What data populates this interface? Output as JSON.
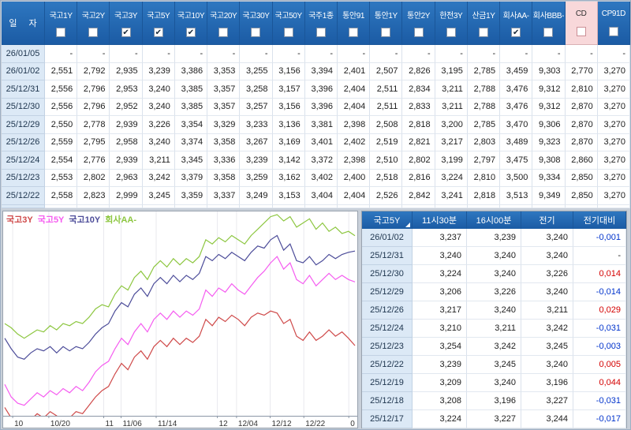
{
  "colors": {
    "header_blue": "#1b5ba4",
    "header_blue_light": "#2e77c0",
    "cd_pink": "#f8d8da",
    "date_cell_bg": "#dce9f6",
    "diff_up_red": "#d40000",
    "diff_down_blue": "#0033cc"
  },
  "top_table": {
    "date_header": "일  자",
    "columns": [
      {
        "label": "국고1Y",
        "checked": false,
        "highlight": false
      },
      {
        "label": "국고2Y",
        "checked": false,
        "highlight": false
      },
      {
        "label": "국고3Y",
        "checked": true,
        "highlight": false
      },
      {
        "label": "국고5Y",
        "checked": true,
        "highlight": false
      },
      {
        "label": "국고10Y",
        "checked": true,
        "highlight": false
      },
      {
        "label": "국고20Y",
        "checked": false,
        "highlight": false
      },
      {
        "label": "국고30Y",
        "checked": false,
        "highlight": false
      },
      {
        "label": "국고50Y",
        "checked": false,
        "highlight": false
      },
      {
        "label": "국주1종",
        "checked": false,
        "highlight": false
      },
      {
        "label": "통안91",
        "checked": false,
        "highlight": false
      },
      {
        "label": "통안1Y",
        "checked": false,
        "highlight": false
      },
      {
        "label": "통안2Y",
        "checked": false,
        "highlight": false
      },
      {
        "label": "한전3Y",
        "checked": false,
        "highlight": false
      },
      {
        "label": "산금1Y",
        "checked": false,
        "highlight": false
      },
      {
        "label": "회사AA-",
        "checked": true,
        "highlight": false
      },
      {
        "label": "회사BBB-",
        "checked": false,
        "highlight": false
      },
      {
        "label": "CD",
        "checked": false,
        "highlight": true
      },
      {
        "label": "CP91D",
        "checked": false,
        "highlight": false
      }
    ],
    "rows": [
      {
        "date": "26/01/05",
        "values": [
          "-",
          "-",
          "-",
          "-",
          "-",
          "-",
          "-",
          "-",
          "-",
          "-",
          "-",
          "-",
          "-",
          "-",
          "-",
          "-",
          "-",
          "-"
        ]
      },
      {
        "date": "26/01/02",
        "values": [
          "2,551",
          "2,792",
          "2,935",
          "3,239",
          "3,386",
          "3,353",
          "3,255",
          "3,156",
          "3,394",
          "2,401",
          "2,507",
          "2,826",
          "3,195",
          "2,785",
          "3,459",
          "9,303",
          "2,770",
          "3,270"
        ]
      },
      {
        "date": "25/12/31",
        "values": [
          "2,556",
          "2,796",
          "2,953",
          "3,240",
          "3,385",
          "3,357",
          "3,258",
          "3,157",
          "3,396",
          "2,404",
          "2,511",
          "2,834",
          "3,211",
          "2,788",
          "3,476",
          "9,312",
          "2,810",
          "3,270"
        ]
      },
      {
        "date": "25/12/30",
        "values": [
          "2,556",
          "2,796",
          "2,952",
          "3,240",
          "3,385",
          "3,357",
          "3,257",
          "3,156",
          "3,396",
          "2,404",
          "2,511",
          "2,833",
          "3,211",
          "2,788",
          "3,476",
          "9,312",
          "2,870",
          "3,270"
        ]
      },
      {
        "date": "25/12/29",
        "values": [
          "2,550",
          "2,778",
          "2,939",
          "3,226",
          "3,354",
          "3,329",
          "3,233",
          "3,136",
          "3,381",
          "2,398",
          "2,508",
          "2,818",
          "3,200",
          "2,785",
          "3,470",
          "9,306",
          "2,870",
          "3,270"
        ]
      },
      {
        "date": "25/12/26",
        "values": [
          "2,559",
          "2,795",
          "2,958",
          "3,240",
          "3,374",
          "3,358",
          "3,267",
          "3,169",
          "3,401",
          "2,402",
          "2,519",
          "2,821",
          "3,217",
          "2,803",
          "3,489",
          "9,323",
          "2,870",
          "3,270"
        ]
      },
      {
        "date": "25/12/24",
        "values": [
          "2,554",
          "2,776",
          "2,939",
          "3,211",
          "3,345",
          "3,336",
          "3,239",
          "3,142",
          "3,372",
          "2,398",
          "2,510",
          "2,802",
          "3,199",
          "2,797",
          "3,475",
          "9,308",
          "2,860",
          "3,270"
        ]
      },
      {
        "date": "25/12/23",
        "values": [
          "2,553",
          "2,802",
          "2,963",
          "3,242",
          "3,379",
          "3,358",
          "3,259",
          "3,162",
          "3,402",
          "2,400",
          "2,518",
          "2,816",
          "3,224",
          "2,810",
          "3,500",
          "9,334",
          "2,850",
          "3,270"
        ]
      },
      {
        "date": "25/12/22",
        "values": [
          "2,558",
          "2,823",
          "2,999",
          "3,245",
          "3,359",
          "3,337",
          "3,249",
          "3,153",
          "3,404",
          "2,404",
          "2,526",
          "2,842",
          "3,241",
          "2,818",
          "3,513",
          "9,349",
          "2,850",
          "3,270"
        ]
      }
    ]
  },
  "detail_table": {
    "headers": [
      "국고5Y",
      "11시30분",
      "16시00분",
      "전기",
      "전기대비"
    ],
    "rows": [
      {
        "date": "26/01/02",
        "v1": "3,237",
        "v2": "3,239",
        "v3": "3,240",
        "diff": "-0,001",
        "dir": "down"
      },
      {
        "date": "25/12/31",
        "v1": "3,240",
        "v2": "3,240",
        "v3": "3,240",
        "diff": "-",
        "dir": "flat"
      },
      {
        "date": "25/12/30",
        "v1": "3,224",
        "v2": "3,240",
        "v3": "3,226",
        "diff": "0,014",
        "dir": "up"
      },
      {
        "date": "25/12/29",
        "v1": "3,206",
        "v2": "3,226",
        "v3": "3,240",
        "diff": "-0,014",
        "dir": "down"
      },
      {
        "date": "25/12/26",
        "v1": "3,217",
        "v2": "3,240",
        "v3": "3,211",
        "diff": "0,029",
        "dir": "up"
      },
      {
        "date": "25/12/24",
        "v1": "3,210",
        "v2": "3,211",
        "v3": "3,242",
        "diff": "-0,031",
        "dir": "down"
      },
      {
        "date": "25/12/23",
        "v1": "3,254",
        "v2": "3,242",
        "v3": "3,245",
        "diff": "-0,003",
        "dir": "down"
      },
      {
        "date": "25/12/22",
        "v1": "3,239",
        "v2": "3,245",
        "v3": "3,240",
        "diff": "0,005",
        "dir": "up"
      },
      {
        "date": "25/12/19",
        "v1": "3,209",
        "v2": "3,240",
        "v3": "3,196",
        "diff": "0,044",
        "dir": "up"
      },
      {
        "date": "25/12/18",
        "v1": "3,208",
        "v2": "3,196",
        "v3": "3,227",
        "diff": "-0,031",
        "dir": "down"
      },
      {
        "date": "25/12/17",
        "v1": "3,224",
        "v2": "3,227",
        "v3": "3,244",
        "diff": "-0,017",
        "dir": "down"
      }
    ]
  },
  "chart_data": {
    "type": "line",
    "legend": [
      "국고3Y",
      "국고5Y",
      "국고10Y",
      "회사AA-"
    ],
    "legend_position": "top-left",
    "grid": "vertical",
    "ylim": [
      2.6,
      3.575
    ],
    "x_ticks": [
      {
        "label": "10",
        "pos": 0.027
      },
      {
        "label": "10/20",
        "pos": 0.129
      },
      {
        "label": "11",
        "pos": 0.284
      },
      {
        "label": "11/06",
        "pos": 0.333
      },
      {
        "label": "11/14",
        "pos": 0.432
      },
      {
        "label": "12",
        "pos": 0.605
      },
      {
        "label": "12/04",
        "pos": 0.659
      },
      {
        "label": "12/12",
        "pos": 0.754
      },
      {
        "label": "12/22",
        "pos": 0.849
      },
      {
        "label": "0",
        "pos": 0.976
      }
    ],
    "series": [
      {
        "name": "국고3Y",
        "color": "#cf4a4a",
        "values": [
          2.64,
          2.59,
          2.56,
          2.55,
          2.58,
          2.61,
          2.59,
          2.62,
          2.6,
          2.57,
          2.59,
          2.62,
          2.61,
          2.65,
          2.69,
          2.72,
          2.74,
          2.8,
          2.85,
          2.82,
          2.88,
          2.91,
          2.87,
          2.93,
          2.96,
          2.93,
          2.97,
          2.94,
          2.97,
          2.95,
          2.98,
          3.06,
          3.03,
          3.07,
          3.05,
          3.08,
          3.06,
          3.03,
          3.07,
          3.09,
          3.08,
          3.1,
          3.09,
          3.04,
          3.06,
          2.98,
          2.96,
          3.0,
          2.96,
          2.98,
          3.01,
          2.98,
          3.0,
          2.97,
          2.935
        ]
      },
      {
        "name": "국고5Y",
        "color": "#f55cf0",
        "values": [
          2.75,
          2.69,
          2.66,
          2.65,
          2.68,
          2.71,
          2.69,
          2.72,
          2.7,
          2.73,
          2.71,
          2.74,
          2.72,
          2.76,
          2.81,
          2.84,
          2.86,
          2.92,
          2.97,
          2.94,
          3.0,
          3.04,
          3.0,
          3.06,
          3.09,
          3.06,
          3.1,
          3.07,
          3.1,
          3.08,
          3.11,
          3.2,
          3.17,
          3.21,
          3.19,
          3.23,
          3.2,
          3.18,
          3.22,
          3.26,
          3.29,
          3.33,
          3.36,
          3.3,
          3.33,
          3.25,
          3.23,
          3.27,
          3.22,
          3.25,
          3.28,
          3.25,
          3.27,
          3.25,
          3.239
        ]
      },
      {
        "name": "국고10Y",
        "color": "#4c4c99",
        "values": [
          2.97,
          2.92,
          2.88,
          2.87,
          2.9,
          2.92,
          2.91,
          2.93,
          2.9,
          2.93,
          2.91,
          2.93,
          2.92,
          2.95,
          2.99,
          3.02,
          3.04,
          3.1,
          3.14,
          3.12,
          3.18,
          3.21,
          3.17,
          3.23,
          3.26,
          3.23,
          3.27,
          3.24,
          3.27,
          3.25,
          3.28,
          3.36,
          3.34,
          3.37,
          3.35,
          3.38,
          3.36,
          3.34,
          3.38,
          3.41,
          3.4,
          3.44,
          3.46,
          3.39,
          3.42,
          3.34,
          3.33,
          3.36,
          3.32,
          3.34,
          3.37,
          3.35,
          3.37,
          3.38,
          3.386
        ]
      },
      {
        "name": "회사AA-",
        "color": "#8cc63f",
        "values": [
          3.04,
          3.02,
          2.99,
          2.97,
          2.99,
          3.01,
          3.0,
          3.03,
          3.01,
          3.04,
          3.03,
          3.05,
          3.04,
          3.07,
          3.11,
          3.13,
          3.12,
          3.18,
          3.22,
          3.2,
          3.26,
          3.29,
          3.25,
          3.31,
          3.34,
          3.31,
          3.35,
          3.32,
          3.35,
          3.33,
          3.36,
          3.44,
          3.42,
          3.45,
          3.43,
          3.46,
          3.44,
          3.42,
          3.46,
          3.49,
          3.52,
          3.55,
          3.56,
          3.53,
          3.55,
          3.5,
          3.52,
          3.54,
          3.49,
          3.52,
          3.48,
          3.5,
          3.47,
          3.48,
          3.459
        ]
      }
    ]
  }
}
